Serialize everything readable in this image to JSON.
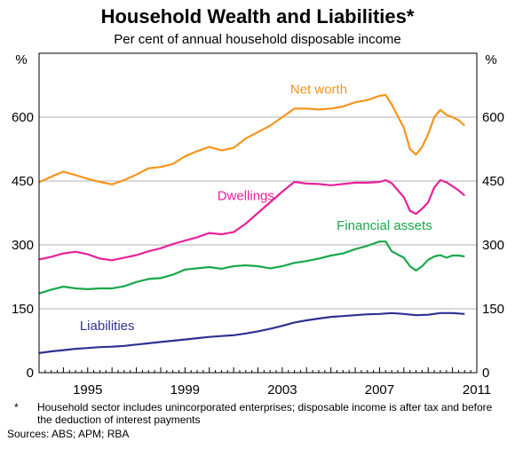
{
  "chart_data": {
    "type": "line",
    "title": "Household Wealth and Liabilities*",
    "subtitle": "Per cent of annual household disposable income",
    "y_unit_left": "%",
    "y_unit_right": "%",
    "ylim": [
      0,
      750
    ],
    "yticks": [
      0,
      150,
      300,
      450,
      600
    ],
    "xlim": [
      1993,
      2011
    ],
    "xticks": [
      1995,
      1999,
      2003,
      2007,
      2011
    ],
    "x_minor_ticks_per_year": 4,
    "grid": true,
    "colors": {
      "net_worth": "#f7941d",
      "dwellings": "#e8219a",
      "financial_assets": "#19a84b",
      "liabilities": "#2e3192",
      "grid": "#b3b3b3"
    },
    "series": [
      {
        "name": "Net worth",
        "key": "net_worth",
        "points": [
          [
            1993.0,
            447
          ],
          [
            1993.5,
            460
          ],
          [
            1994.0,
            472
          ],
          [
            1994.5,
            464
          ],
          [
            1995.0,
            455
          ],
          [
            1995.5,
            448
          ],
          [
            1996.0,
            442
          ],
          [
            1996.5,
            452
          ],
          [
            1997.0,
            465
          ],
          [
            1997.5,
            480
          ],
          [
            1998.0,
            483
          ],
          [
            1998.5,
            490
          ],
          [
            1999.0,
            508
          ],
          [
            1999.5,
            520
          ],
          [
            2000.0,
            530
          ],
          [
            2000.5,
            522
          ],
          [
            2001.0,
            528
          ],
          [
            2001.5,
            550
          ],
          [
            2002.0,
            565
          ],
          [
            2002.5,
            580
          ],
          [
            2003.0,
            600
          ],
          [
            2003.5,
            620
          ],
          [
            2004.0,
            620
          ],
          [
            2004.5,
            618
          ],
          [
            2005.0,
            620
          ],
          [
            2005.5,
            625
          ],
          [
            2006.0,
            635
          ],
          [
            2006.5,
            640
          ],
          [
            2007.0,
            650
          ],
          [
            2007.25,
            652
          ],
          [
            2007.5,
            630
          ],
          [
            2008.0,
            575
          ],
          [
            2008.25,
            525
          ],
          [
            2008.5,
            512
          ],
          [
            2008.75,
            530
          ],
          [
            2009.0,
            560
          ],
          [
            2009.25,
            600
          ],
          [
            2009.5,
            617
          ],
          [
            2009.75,
            605
          ],
          [
            2010.0,
            600
          ],
          [
            2010.25,
            593
          ],
          [
            2010.5,
            580
          ]
        ]
      },
      {
        "name": "Dwellings",
        "key": "dwellings",
        "points": [
          [
            1993.0,
            266
          ],
          [
            1993.5,
            272
          ],
          [
            1994.0,
            280
          ],
          [
            1994.5,
            284
          ],
          [
            1995.0,
            278
          ],
          [
            1995.5,
            268
          ],
          [
            1996.0,
            264
          ],
          [
            1996.5,
            270
          ],
          [
            1997.0,
            276
          ],
          [
            1997.5,
            285
          ],
          [
            1998.0,
            292
          ],
          [
            1998.5,
            302
          ],
          [
            1999.0,
            310
          ],
          [
            1999.5,
            318
          ],
          [
            2000.0,
            328
          ],
          [
            2000.5,
            325
          ],
          [
            2001.0,
            330
          ],
          [
            2001.5,
            350
          ],
          [
            2002.0,
            375
          ],
          [
            2002.5,
            400
          ],
          [
            2003.0,
            425
          ],
          [
            2003.5,
            448
          ],
          [
            2004.0,
            444
          ],
          [
            2004.5,
            443
          ],
          [
            2005.0,
            440
          ],
          [
            2005.5,
            443
          ],
          [
            2006.0,
            446
          ],
          [
            2006.5,
            446
          ],
          [
            2007.0,
            448
          ],
          [
            2007.25,
            452
          ],
          [
            2007.5,
            445
          ],
          [
            2008.0,
            412
          ],
          [
            2008.25,
            380
          ],
          [
            2008.5,
            373
          ],
          [
            2008.75,
            385
          ],
          [
            2009.0,
            400
          ],
          [
            2009.25,
            435
          ],
          [
            2009.5,
            452
          ],
          [
            2009.75,
            447
          ],
          [
            2010.0,
            438
          ],
          [
            2010.25,
            428
          ],
          [
            2010.5,
            416
          ]
        ]
      },
      {
        "name": "Financial assets",
        "key": "financial_assets",
        "points": [
          [
            1993.0,
            186
          ],
          [
            1993.5,
            195
          ],
          [
            1994.0,
            202
          ],
          [
            1994.5,
            198
          ],
          [
            1995.0,
            196
          ],
          [
            1995.5,
            198
          ],
          [
            1996.0,
            198
          ],
          [
            1996.5,
            203
          ],
          [
            1997.0,
            213
          ],
          [
            1997.5,
            220
          ],
          [
            1998.0,
            222
          ],
          [
            1998.5,
            230
          ],
          [
            1999.0,
            242
          ],
          [
            1999.5,
            245
          ],
          [
            2000.0,
            248
          ],
          [
            2000.5,
            244
          ],
          [
            2001.0,
            250
          ],
          [
            2001.5,
            252
          ],
          [
            2002.0,
            250
          ],
          [
            2002.5,
            245
          ],
          [
            2003.0,
            250
          ],
          [
            2003.5,
            258
          ],
          [
            2004.0,
            262
          ],
          [
            2004.5,
            268
          ],
          [
            2005.0,
            275
          ],
          [
            2005.5,
            280
          ],
          [
            2006.0,
            290
          ],
          [
            2006.5,
            298
          ],
          [
            2007.0,
            308
          ],
          [
            2007.25,
            308
          ],
          [
            2007.5,
            285
          ],
          [
            2008.0,
            270
          ],
          [
            2008.25,
            250
          ],
          [
            2008.5,
            240
          ],
          [
            2008.75,
            250
          ],
          [
            2009.0,
            265
          ],
          [
            2009.25,
            273
          ],
          [
            2009.5,
            276
          ],
          [
            2009.75,
            270
          ],
          [
            2010.0,
            275
          ],
          [
            2010.25,
            275
          ],
          [
            2010.5,
            273
          ]
        ]
      },
      {
        "name": "Liabilities",
        "key": "liabilities",
        "points": [
          [
            1993.0,
            46
          ],
          [
            1993.5,
            50
          ],
          [
            1994.0,
            53
          ],
          [
            1994.5,
            56
          ],
          [
            1995.0,
            58
          ],
          [
            1995.5,
            60
          ],
          [
            1996.0,
            61
          ],
          [
            1996.5,
            63
          ],
          [
            1997.0,
            66
          ],
          [
            1997.5,
            69
          ],
          [
            1998.0,
            72
          ],
          [
            1998.5,
            75
          ],
          [
            1999.0,
            78
          ],
          [
            1999.5,
            81
          ],
          [
            2000.0,
            84
          ],
          [
            2000.5,
            86
          ],
          [
            2001.0,
            88
          ],
          [
            2001.5,
            92
          ],
          [
            2002.0,
            97
          ],
          [
            2002.5,
            103
          ],
          [
            2003.0,
            110
          ],
          [
            2003.5,
            118
          ],
          [
            2004.0,
            123
          ],
          [
            2004.5,
            127
          ],
          [
            2005.0,
            131
          ],
          [
            2005.5,
            133
          ],
          [
            2006.0,
            135
          ],
          [
            2006.5,
            137
          ],
          [
            2007.0,
            138
          ],
          [
            2007.5,
            140
          ],
          [
            2008.0,
            138
          ],
          [
            2008.5,
            135
          ],
          [
            2009.0,
            136
          ],
          [
            2009.5,
            140
          ],
          [
            2010.0,
            140
          ],
          [
            2010.5,
            138
          ]
        ]
      }
    ],
    "series_labels": [
      {
        "key": "net_worth",
        "text": "Net worth",
        "x": 2004.5,
        "y": 655
      },
      {
        "key": "dwellings",
        "text": "Dwellings",
        "x": 2001.5,
        "y": 405
      },
      {
        "key": "financial_assets",
        "text": "Financial assets",
        "x": 2007.2,
        "y": 335
      },
      {
        "key": "liabilities",
        "text": "Liabilities",
        "x": 1995.8,
        "y": 100
      }
    ]
  },
  "footnote": {
    "marker": "*",
    "text": "Household sector includes unincorporated enterprises; disposable income is after tax and before the deduction of interest payments",
    "sources": "Sources:  ABS; APM; RBA"
  }
}
